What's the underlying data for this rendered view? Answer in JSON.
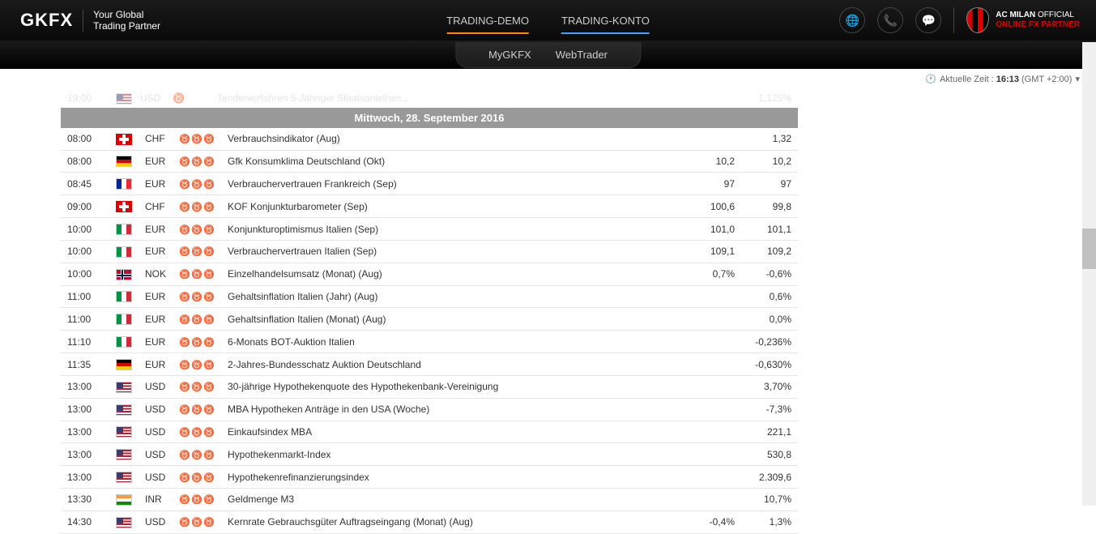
{
  "header": {
    "logo": "GKFX",
    "tagline_l1": "Your Global",
    "tagline_l2": "Trading Partner",
    "nav": {
      "demo": "TRADING-DEMO",
      "konto": "TRADING-KONTO"
    },
    "partner_l1_a": "AC MILAN",
    "partner_l1_b": " OFFICIAL",
    "partner_l2": "ONLINE FX PARTNER"
  },
  "subheader": {
    "mygkfx": "MyGKFX",
    "webtrader": "WebTrader"
  },
  "timebar": {
    "label": "Aktuelle Zeit :",
    "time": "16:13",
    "tz": "(GMT +2:00)"
  },
  "faded": {
    "time": "19:00",
    "curr": "USD",
    "event": "Tenderverfahren 5-Jähriger Staatsanleihen...",
    "val2": "1,125%"
  },
  "date_header": "Mittwoch, 28. September 2016",
  "rows": [
    {
      "time": "08:00",
      "flag": "ch",
      "curr": "CHF",
      "impact": 1,
      "event": "Verbrauchsindikator (Aug)",
      "v1": "",
      "v2": "1,32"
    },
    {
      "time": "08:00",
      "flag": "de",
      "curr": "EUR",
      "impact": 2,
      "event": "Gfk Konsumklima Deutschland (Okt)",
      "v1": "10,2",
      "v2": "10,2"
    },
    {
      "time": "08:45",
      "flag": "fr",
      "curr": "EUR",
      "impact": 1,
      "event": "Verbrauchervertrauen Frankreich (Sep)",
      "v1": "97",
      "v2": "97"
    },
    {
      "time": "09:00",
      "flag": "ch",
      "curr": "CHF",
      "impact": 2,
      "event": "KOF Konjunkturbarometer (Sep)",
      "v1": "100,6",
      "v2": "99,8"
    },
    {
      "time": "10:00",
      "flag": "it",
      "curr": "EUR",
      "impact": 1,
      "event": "Konjunkturoptimismus Italien (Sep)",
      "v1": "101,0",
      "v2": "101,1"
    },
    {
      "time": "10:00",
      "flag": "it",
      "curr": "EUR",
      "impact": 1,
      "event": "Verbrauchervertrauen Italien (Sep)",
      "v1": "109,1",
      "v2": "109,2"
    },
    {
      "time": "10:00",
      "flag": "no",
      "curr": "NOK",
      "impact": 1,
      "event": "Einzelhandelsumsatz (Monat) (Aug)",
      "v1": "0,7%",
      "v2": "-0,6%"
    },
    {
      "time": "11:00",
      "flag": "it",
      "curr": "EUR",
      "impact": 1,
      "event": "Gehaltsinflation Italien (Jahr) (Aug)",
      "v1": "",
      "v2": "0,6%"
    },
    {
      "time": "11:00",
      "flag": "it",
      "curr": "EUR",
      "impact": 1,
      "event": "Gehaltsinflation Italien (Monat) (Aug)",
      "v1": "",
      "v2": "0,0%"
    },
    {
      "time": "11:10",
      "flag": "it",
      "curr": "EUR",
      "impact": 1,
      "event": "6-Monats BOT-Auktion Italien",
      "v1": "",
      "v2": "-0,236%"
    },
    {
      "time": "11:35",
      "flag": "de",
      "curr": "EUR",
      "impact": 1,
      "event": "2-Jahres-Bundesschatz Auktion Deutschland",
      "v1": "",
      "v2": "-0,630%"
    },
    {
      "time": "13:00",
      "flag": "us",
      "curr": "USD",
      "impact": 1,
      "event": "30-jährige Hypothekenquote des Hypothekenbank-Vereinigung",
      "v1": "",
      "v2": "3,70%"
    },
    {
      "time": "13:00",
      "flag": "us",
      "curr": "USD",
      "impact": 1,
      "event": "MBA Hypotheken Anträge in den USA (Woche)",
      "v1": "",
      "v2": "-7,3%"
    },
    {
      "time": "13:00",
      "flag": "us",
      "curr": "USD",
      "impact": 1,
      "event": "Einkaufsindex MBA",
      "v1": "",
      "v2": "221,1"
    },
    {
      "time": "13:00",
      "flag": "us",
      "curr": "USD",
      "impact": 1,
      "event": "Hypothekenmarkt-Index",
      "v1": "",
      "v2": "530,8"
    },
    {
      "time": "13:00",
      "flag": "us",
      "curr": "USD",
      "impact": 1,
      "event": "Hypothekenrefinanzierungsindex",
      "v1": "",
      "v2": "2.309,6"
    },
    {
      "time": "13:30",
      "flag": "in",
      "curr": "INR",
      "impact": 1,
      "event": "Geldmenge M3",
      "v1": "",
      "v2": "10,7%"
    },
    {
      "time": "14:30",
      "flag": "us",
      "curr": "USD",
      "impact": 2,
      "event": "Kernrate Gebrauchsgüter Auftragseingang (Monat) (Aug)",
      "v1": "-0,4%",
      "v2": "1,3%"
    }
  ]
}
